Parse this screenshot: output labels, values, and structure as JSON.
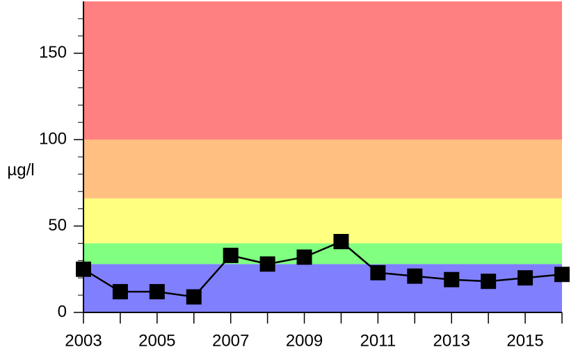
{
  "chart_data": {
    "type": "line",
    "y_label": "µg/l",
    "x": [
      2003,
      2004,
      2005,
      2006,
      2007,
      2008,
      2009,
      2010,
      2011,
      2012,
      2013,
      2014,
      2015,
      2016
    ],
    "series": [
      {
        "color": "#000000",
        "values": [
          25,
          12,
          12,
          9,
          33,
          28,
          32,
          41,
          23,
          21,
          19,
          18,
          20,
          22
        ]
      }
    ],
    "bands": [
      {
        "from": 0,
        "to": 28,
        "color": "#8080ff"
      },
      {
        "from": 28,
        "to": 40,
        "color": "#80ff80"
      },
      {
        "from": 40,
        "to": 66,
        "color": "#ffff80"
      },
      {
        "from": 66,
        "to": 100,
        "color": "#ffbf80"
      },
      {
        "from": 100,
        "to": 180,
        "color": "#ff8080"
      }
    ],
    "xlim": [
      2003,
      2016
    ],
    "xticks": [
      2003,
      2005,
      2007,
      2009,
      2011,
      2013,
      2015
    ],
    "xminor_ticks": [
      2004,
      2006,
      2008,
      2010,
      2012,
      2014,
      2016
    ],
    "ylim": [
      0,
      180
    ],
    "yticks": [
      0,
      50,
      100,
      150
    ],
    "yminor_ticks": [
      10,
      20,
      30,
      40,
      60,
      70,
      80,
      90,
      110,
      120,
      130,
      140,
      160,
      170
    ]
  }
}
